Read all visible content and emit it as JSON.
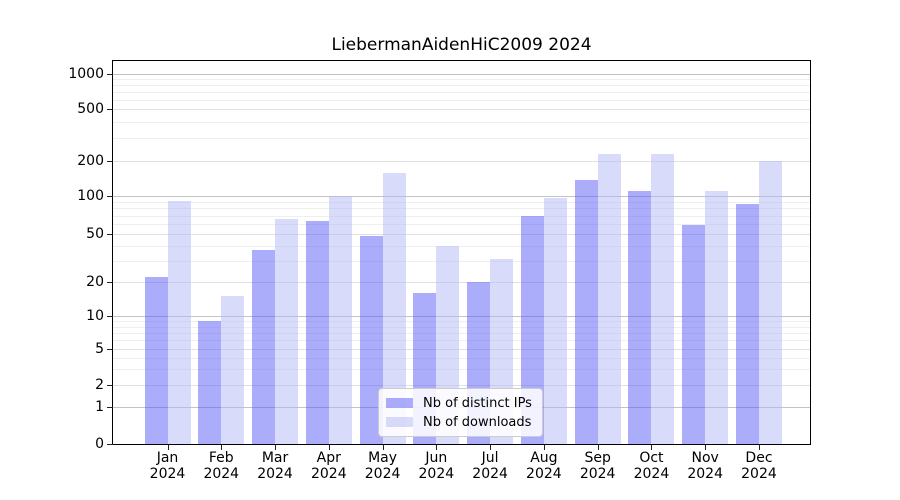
{
  "chart_data": {
    "type": "bar",
    "title": "LiebermanAidenHiC2009 2024",
    "yscale": "symlog",
    "grid": true,
    "legend_position": "lower center",
    "ylim": [
      0,
      1400
    ],
    "yticks": [
      1000,
      500,
      200,
      100,
      50,
      20,
      10,
      5,
      2,
      1,
      0
    ],
    "categories": [
      "Jan\n2024",
      "Feb\n2024",
      "Mar\n2024",
      "Apr\n2024",
      "May\n2024",
      "Jun\n2024",
      "Jul\n2024",
      "Aug\n2024",
      "Sep\n2024",
      "Oct\n2024",
      "Nov\n2024",
      "Dec\n2024"
    ],
    "series": [
      {
        "name": "Nb of distinct IPs",
        "color": "rgba(88,92,246,0.5)",
        "values": [
          22,
          9,
          37,
          64,
          48,
          16,
          20,
          70,
          137,
          111,
          59,
          87
        ]
      },
      {
        "name": "Nb of downloads",
        "color": "rgba(180,183,248,0.5)",
        "values": [
          92,
          15,
          66,
          101,
          158,
          40,
          31,
          97,
          225,
          225,
          111,
          200
        ]
      }
    ]
  }
}
